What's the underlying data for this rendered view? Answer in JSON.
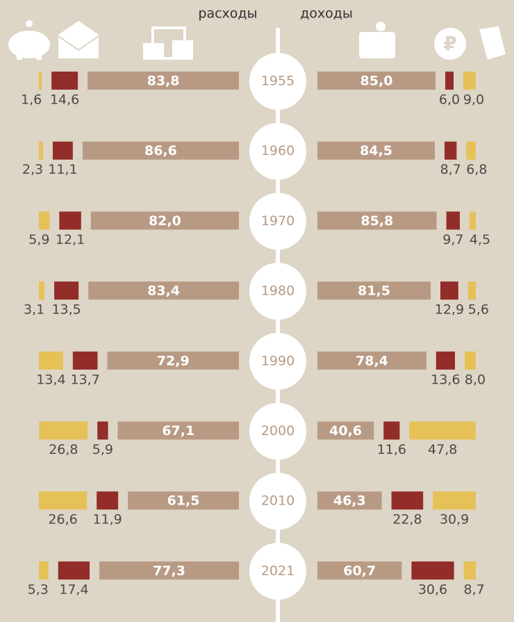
{
  "chart_data": {
    "type": "bar",
    "categories": [
      "1955",
      "1960",
      "1970",
      "1980",
      "1990",
      "2000",
      "2010",
      "2021"
    ],
    "groups": [
      {
        "name": "расходы",
        "series": [
          {
            "color": "#b89a84",
            "values": [
              83.8,
              86.6,
              82.0,
              83.4,
              72.9,
              67.1,
              61.5,
              77.3
            ],
            "value_labels": [
              "83,8",
              "86,6",
              "82,0",
              "83,4",
              "72,9",
              "67,1",
              "61,5",
              "77,3"
            ]
          },
          {
            "color": "#922d2a",
            "values": [
              14.6,
              11.1,
              12.1,
              13.5,
              13.7,
              5.9,
              11.9,
              17.4
            ],
            "value_labels": [
              "14,6",
              "11,1",
              "12,1",
              "13,5",
              "13,7",
              "5,9",
              "11,9",
              "17,4"
            ]
          },
          {
            "color": "#e5c158",
            "values": [
              1.6,
              2.3,
              5.9,
              3.1,
              13.4,
              26.8,
              26.6,
              5.3
            ],
            "value_labels": [
              "1,6",
              "2,3",
              "5,9",
              "3,1",
              "13,4",
              "26,8",
              "26,6",
              "5,3"
            ]
          }
        ]
      },
      {
        "name": "доходы",
        "series": [
          {
            "color": "#b89a84",
            "values": [
              85.0,
              84.5,
              85.8,
              81.5,
              78.4,
              40.6,
              46.3,
              60.7
            ],
            "value_labels": [
              "85,0",
              "84,5",
              "85,8",
              "81,5",
              "78,4",
              "40,6",
              "46,3",
              "60,7"
            ]
          },
          {
            "color": "#922d2a",
            "values": [
              6.0,
              8.7,
              9.7,
              12.9,
              13.6,
              11.6,
              22.8,
              30.6
            ],
            "value_labels": [
              "6,0",
              "8,7",
              "9,7",
              "12,9",
              "13,6",
              "11,6",
              "22,8",
              "30,6"
            ]
          },
          {
            "color": "#e5c158",
            "values": [
              9.0,
              6.8,
              4.5,
              5.6,
              8.0,
              47.8,
              30.9,
              8.7
            ],
            "value_labels": [
              "9,0",
              "6,8",
              "4,5",
              "5,6",
              "8,0",
              "47,8",
              "30,9",
              "8,7"
            ]
          }
        ]
      }
    ]
  }
}
